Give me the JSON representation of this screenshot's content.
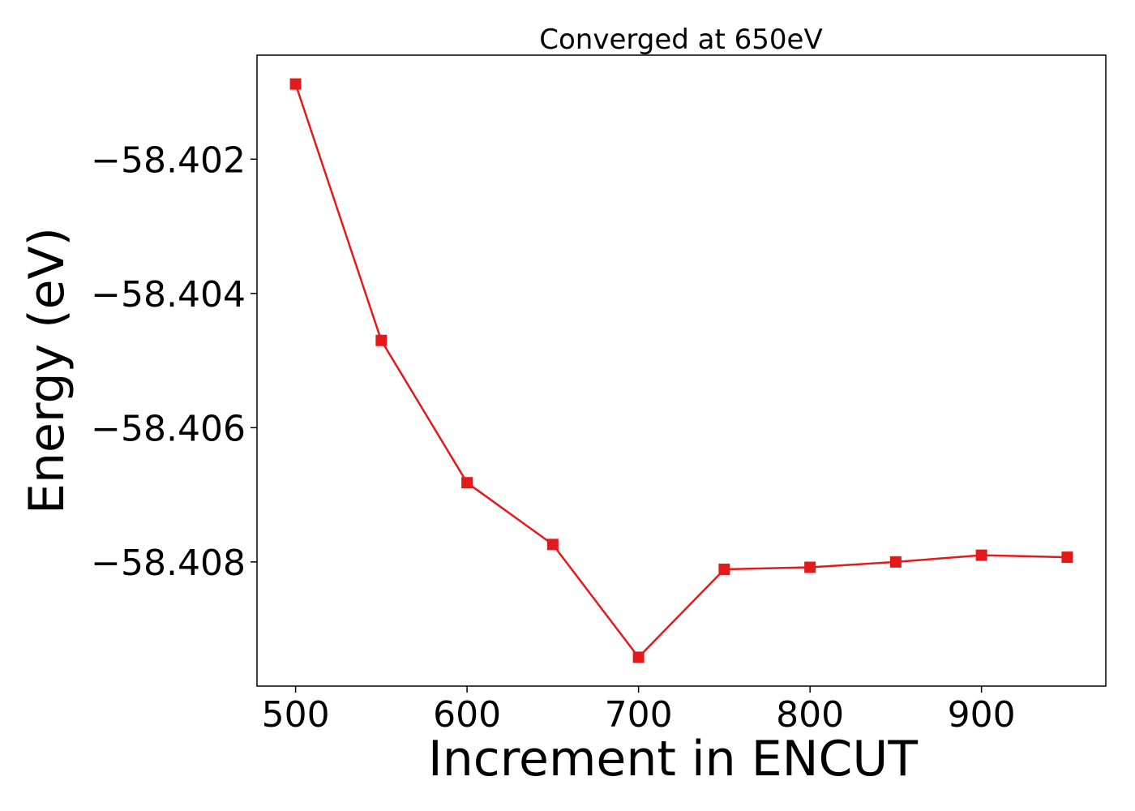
{
  "chart_data": {
    "type": "line",
    "title": "Converged at 650eV",
    "xlabel": "Increment in ENCUT",
    "ylabel": "Energy (eV)",
    "xlim": [
      477.5,
      972.5
    ],
    "ylim": [
      -58.40985,
      -58.40045
    ],
    "xticks": [
      500,
      600,
      700,
      800,
      900
    ],
    "yticks": [
      -58.402,
      -58.404,
      -58.406,
      -58.408
    ],
    "xtick_labels": [
      "500",
      "600",
      "700",
      "800",
      "900"
    ],
    "ytick_labels": [
      "−58.402",
      "−58.404",
      "−58.406",
      "−58.408"
    ],
    "grid": false,
    "legend": "none",
    "color": "#e31a1c",
    "marker": "square",
    "series": [
      {
        "x": [
          500,
          550,
          600,
          650,
          700,
          750,
          800,
          850,
          900,
          950
        ],
        "y": [
          -58.40088,
          -58.4047,
          -58.40682,
          -58.40774,
          -58.40942,
          -58.40811,
          -58.40808,
          -58.408,
          -58.4079,
          -58.40793
        ]
      }
    ]
  }
}
